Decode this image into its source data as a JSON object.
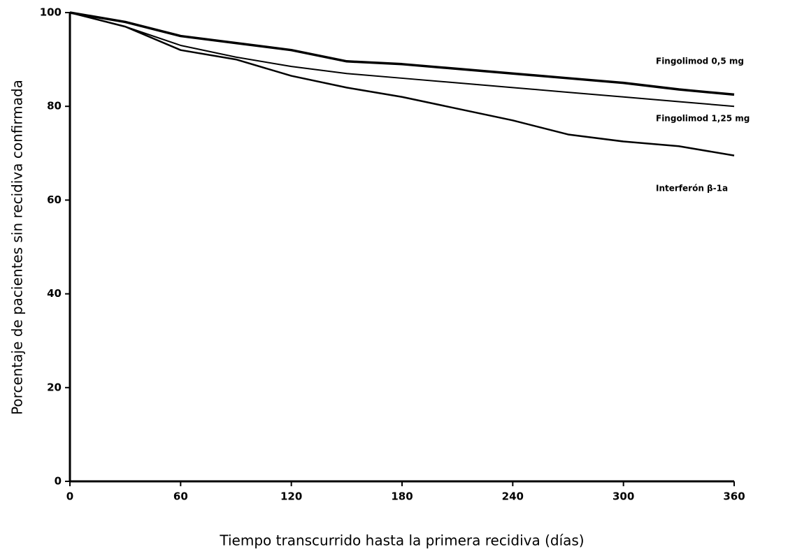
{
  "chart_data": {
    "type": "line",
    "x_label": "Tiempo transcurrido hasta la primera recidiva (días)",
    "y_label": "Porcentaje de pacientes sin recidiva confirmada",
    "x": [
      0,
      30,
      60,
      90,
      120,
      150,
      180,
      210,
      240,
      270,
      300,
      330,
      360
    ],
    "series": [
      {
        "name": "Fingolimod 0,5  mg",
        "color": "#000000",
        "values": [
          100,
          98,
          95,
          93.5,
          92,
          89.6,
          89,
          88,
          87,
          86,
          85,
          83.6,
          82.5
        ]
      },
      {
        "name": "Fingolimod 1,25 mg",
        "color": "#000000",
        "values": [
          100,
          97,
          93,
          90.5,
          88.5,
          87,
          86,
          85,
          84,
          83,
          82,
          81,
          80
        ]
      },
      {
        "name": "Interferón β-1a",
        "color": "#000000",
        "values": [
          100,
          97,
          92,
          90,
          86.5,
          84,
          82,
          79.5,
          77,
          74,
          72.5,
          71.5,
          69.5
        ]
      }
    ],
    "xlim": [
      0,
      360
    ],
    "xticks": [
      0,
      60,
      120,
      180,
      240,
      300,
      360
    ],
    "ylim": [
      0,
      100
    ],
    "yticks": [
      0,
      20,
      40,
      60,
      80,
      100
    ]
  }
}
